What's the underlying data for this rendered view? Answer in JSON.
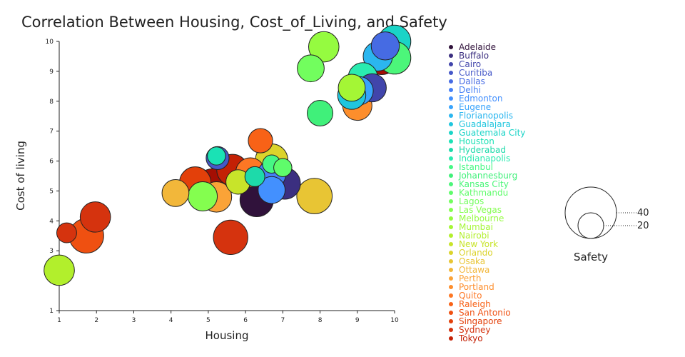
{
  "chart_data": {
    "type": "scatter",
    "title": "Correlation Between Housing, Cost_of_Living, and Safety",
    "xlabel": "Housing",
    "ylabel": "Cost of living",
    "xlim": [
      1,
      10
    ],
    "ylim": [
      1,
      10
    ],
    "x_ticks": [
      "1",
      "2",
      "3",
      "4",
      "5",
      "6",
      "7",
      "8",
      "9",
      "10"
    ],
    "y_ticks": [
      "1",
      "2",
      "3",
      "4",
      "5",
      "6",
      "7",
      "8",
      "9",
      "10"
    ],
    "size_legend": {
      "title": "Safety",
      "values": [
        40,
        20
      ]
    },
    "series": [
      {
        "name": "Adelaide",
        "color": "#30123b",
        "points": [
          {
            "x": 6.3,
            "y": 4.7,
            "safety": 17
          }
        ]
      },
      {
        "name": "Buffalo",
        "color": "#3b2f80",
        "points": [
          {
            "x": 7.05,
            "y": 5.25,
            "safety": 15
          }
        ]
      },
      {
        "name": "Cairo",
        "color": "#4145ab",
        "points": [
          {
            "x": 9.4,
            "y": 8.45,
            "safety": 12
          }
        ]
      },
      {
        "name": "Curitiba",
        "color": "#4558c8",
        "points": [
          {
            "x": 5.25,
            "y": 6.1,
            "safety": 8
          }
        ]
      },
      {
        "name": "Dallas",
        "color": "#466be3",
        "points": [
          {
            "x": 9.75,
            "y": 9.85,
            "safety": 12
          }
        ]
      },
      {
        "name": "Delhi",
        "color": "#4680f6",
        "points": [
          {
            "x": 6.7,
            "y": 5.55,
            "safety": 12
          }
        ]
      },
      {
        "name": "Edmonton",
        "color": "#4390fe",
        "points": [
          {
            "x": 6.7,
            "y": 5.03,
            "safety": 11
          }
        ]
      },
      {
        "name": "Eugene",
        "color": "#38a3fc",
        "points": [
          {
            "x": 9.05,
            "y": 8.35,
            "safety": 12
          }
        ]
      },
      {
        "name": "Florianopolis",
        "color": "#2bb6ef",
        "points": [
          {
            "x": 9.55,
            "y": 9.5,
            "safety": 13
          }
        ]
      },
      {
        "name": "Guadalajara",
        "color": "#20c6de",
        "points": [
          {
            "x": 8.85,
            "y": 8.2,
            "safety": 12
          }
        ]
      },
      {
        "name": "Guatemala City",
        "color": "#1ad4c7",
        "points": [
          {
            "x": 10.0,
            "y": 10.0,
            "safety": 16
          }
        ]
      },
      {
        "name": "Houston",
        "color": "#1ae2b5",
        "points": [
          {
            "x": 5.22,
            "y": 6.17,
            "safety": 5
          }
        ]
      },
      {
        "name": "Hyderabad",
        "color": "#1ddaaa",
        "points": [
          {
            "x": 6.25,
            "y": 5.48,
            "safety": 6
          }
        ]
      },
      {
        "name": "Indianapolis",
        "color": "#2aebb0",
        "points": [
          {
            "x": 9.15,
            "y": 8.8,
            "safety": 13
          }
        ]
      },
      {
        "name": "Istanbul",
        "color": "#46f884",
        "points": [
          {
            "x": 6.7,
            "y": 5.9,
            "safety": 5
          }
        ]
      },
      {
        "name": "Johannesburg",
        "color": "#40f07a",
        "points": [
          {
            "x": 8.0,
            "y": 7.6,
            "safety": 10
          }
        ]
      },
      {
        "name": "Kansas City",
        "color": "#4cf67a",
        "points": [
          {
            "x": 10.0,
            "y": 9.45,
            "safety": 16
          }
        ]
      },
      {
        "name": "Kathmandu",
        "color": "#5ffc6b",
        "points": [
          {
            "x": 7.0,
            "y": 5.78,
            "safety": 5
          }
        ]
      },
      {
        "name": "Lagos",
        "color": "#72fe5e",
        "points": [
          {
            "x": 7.75,
            "y": 9.1,
            "safety": 11
          }
        ]
      },
      {
        "name": "Las Vegas",
        "color": "#84fe4f",
        "points": [
          {
            "x": 4.85,
            "y": 4.82,
            "safety": 13
          }
        ]
      },
      {
        "name": "Melbourne",
        "color": "#95fb40",
        "points": [
          {
            "x": 8.1,
            "y": 9.82,
            "safety": 14
          }
        ]
      },
      {
        "name": "Mumbai",
        "color": "#a4f635",
        "points": [
          {
            "x": 8.85,
            "y": 8.45,
            "safety": 11
          }
        ]
      },
      {
        "name": "Nairobi",
        "color": "#b2ef2c",
        "points": [
          {
            "x": 1.0,
            "y": 2.35,
            "safety": 14
          }
        ]
      },
      {
        "name": "New York",
        "color": "#c8e42a",
        "points": [
          {
            "x": 5.8,
            "y": 5.3,
            "safety": 9
          }
        ]
      },
      {
        "name": "Orlando",
        "color": "#dbd32b",
        "points": [
          {
            "x": 6.7,
            "y": 6.03,
            "safety": 16
          }
        ]
      },
      {
        "name": "Osaka",
        "color": "#e8c534",
        "points": [
          {
            "x": 7.85,
            "y": 4.83,
            "safety": 19
          }
        ]
      },
      {
        "name": "Ottawa",
        "color": "#f2b73a",
        "points": [
          {
            "x": 4.12,
            "y": 4.93,
            "safety": 11
          }
        ]
      },
      {
        "name": "Perth",
        "color": "#fba337",
        "points": [
          {
            "x": 5.22,
            "y": 4.8,
            "safety": 14
          }
        ]
      },
      {
        "name": "Portland",
        "color": "#fd8e2c",
        "points": [
          {
            "x": 9.0,
            "y": 7.85,
            "safety": 13
          }
        ]
      },
      {
        "name": "Quito",
        "color": "#fd7724",
        "points": [
          {
            "x": 6.13,
            "y": 5.62,
            "safety": 13
          }
        ]
      },
      {
        "name": "Raleigh",
        "color": "#f86217",
        "points": [
          {
            "x": 6.4,
            "y": 6.68,
            "safety": 9
          }
        ]
      },
      {
        "name": "San Antonio",
        "color": "#ef5011",
        "points": [
          {
            "x": 1.73,
            "y": 3.5,
            "safety": 18
          }
        ]
      },
      {
        "name": "Singapore",
        "color": "#e3400a",
        "points": [
          {
            "x": 4.65,
            "y": 5.28,
            "safety": 15
          }
        ]
      },
      {
        "name": "Sydney",
        "color": "#d5330e",
        "points": [
          {
            "x": 5.6,
            "y": 3.45,
            "safety": 18
          },
          {
            "x": 1.97,
            "y": 4.13,
            "safety": 14
          },
          {
            "x": 1.2,
            "y": 3.6,
            "safety": 6
          }
        ]
      },
      {
        "name": "Tokyo",
        "color": "#c42105",
        "points": [
          {
            "x": 5.65,
            "y": 5.7,
            "safety": 15
          }
        ]
      },
      {
        "name": "",
        "color": "#a40e03",
        "points": [
          {
            "x": 5.12,
            "y": 5.18,
            "safety": 17
          },
          {
            "x": 9.65,
            "y": 9.45,
            "safety": 17
          }
        ]
      }
    ]
  }
}
